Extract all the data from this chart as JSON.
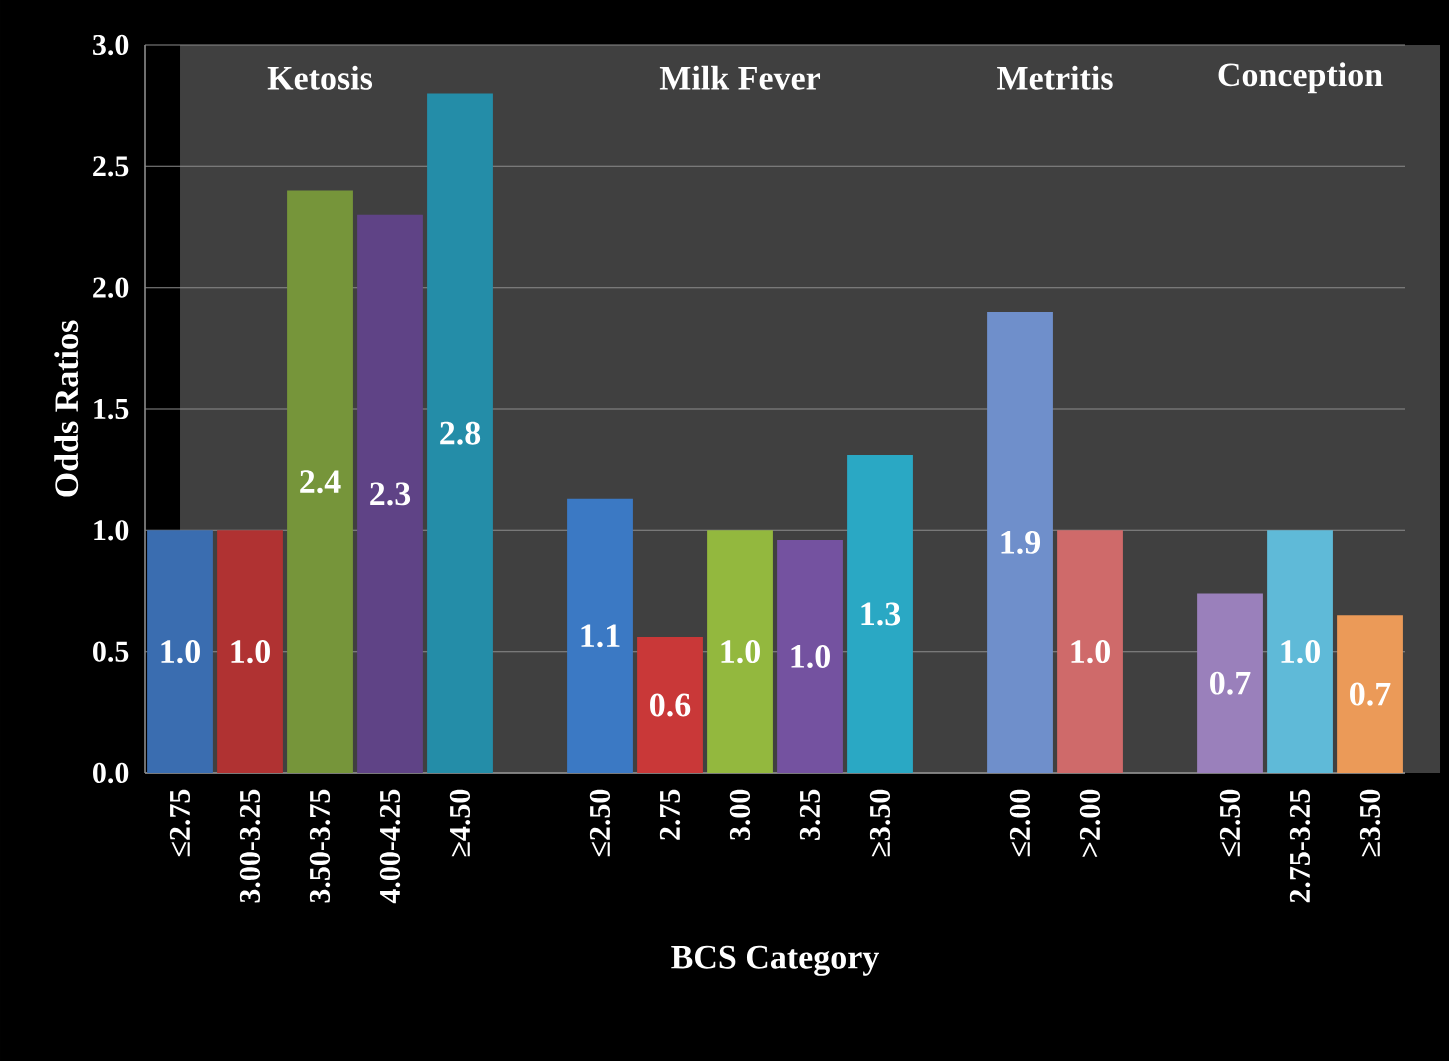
{
  "chart_data": {
    "type": "bar",
    "xlabel": "BCS Category",
    "ylabel": "Odds Ratios",
    "categories": [
      "≤2.75",
      "3.00-3.25",
      "3.50-3.75",
      "4.00-4.25",
      "≥4.50",
      null,
      "≤2.50",
      "2.75",
      "3.00",
      "3.25",
      "≥3.50",
      null,
      "≤2.00",
      ">2.00",
      null,
      "≤2.50",
      "2.75-3.25",
      "≥3.50"
    ],
    "values": [
      1.0,
      1.0,
      2.4,
      2.3,
      2.8,
      null,
      1.13,
      0.56,
      1.0,
      0.96,
      1.31,
      null,
      1.9,
      1.0,
      null,
      0.74,
      1.0,
      0.65
    ],
    "value_labels": [
      "1.0",
      "1.0",
      "2.4",
      "2.3",
      "2.8",
      null,
      "1.1",
      "0.6",
      "1.0",
      "1.0",
      "1.3",
      null,
      "1.9",
      "1.0",
      null,
      "0.7",
      "1.0",
      "0.7"
    ],
    "colors": [
      "#3a6db0",
      "#b03232",
      "#76953a",
      "#5f4386",
      "#248da8",
      null,
      "#3b79c4",
      "#c93838",
      "#93b83e",
      "#7452a0",
      "#2aa8c4",
      null,
      "#6f8fcb",
      "#cf6a6a",
      null,
      "#9a80bb",
      "#5fbad8",
      "#eb9a58"
    ],
    "ylim": [
      0,
      3
    ],
    "yticks": [
      {
        "value": 0,
        "label": "0.0"
      },
      {
        "value": 0.5,
        "label": "0.5"
      },
      {
        "value": 1,
        "label": "1.0"
      },
      {
        "value": 1.5,
        "label": "1.5"
      },
      {
        "value": 2,
        "label": "2.0"
      },
      {
        "value": 2.5,
        "label": "2.5"
      },
      {
        "value": 3,
        "label": "3.0"
      }
    ],
    "grid": "y",
    "annotations": [
      "Ketosis",
      "Milk Fever",
      "Metritis",
      "Conception"
    ]
  }
}
